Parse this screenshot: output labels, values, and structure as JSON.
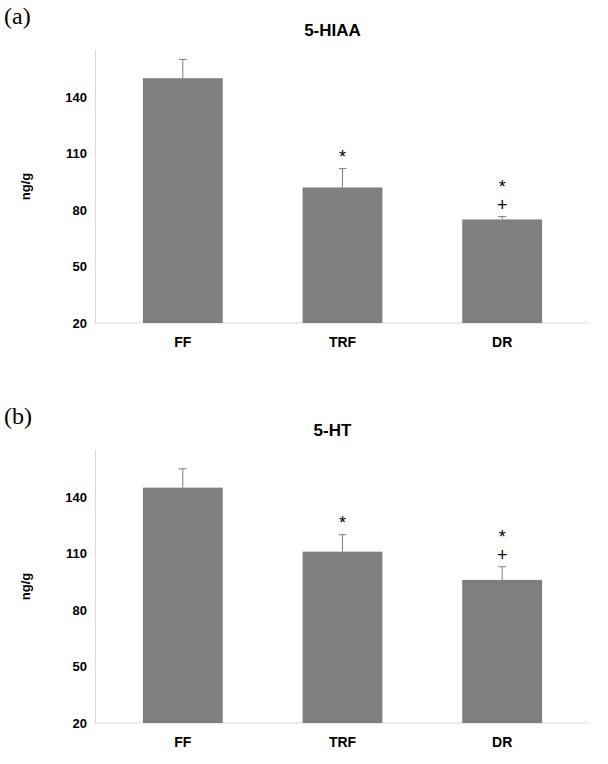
{
  "chart_data": [
    {
      "type": "bar",
      "panel": "(a)",
      "title": "5-HIAA",
      "y_label": "ng/g",
      "categories": [
        "FF",
        "TRF",
        "DR"
      ],
      "values": [
        150,
        92,
        75
      ],
      "errors": [
        10,
        10,
        1.5
      ],
      "color": "#7f7f7f",
      "ylim": [
        20,
        165
      ],
      "yticks": [
        20,
        50,
        80,
        110,
        140
      ],
      "annotations": [
        {
          "x": "TRF",
          "text": "*"
        },
        {
          "x": "DR",
          "text": "*"
        },
        {
          "x": "DR",
          "text": "+"
        }
      ]
    },
    {
      "type": "bar",
      "panel": "(b)",
      "title": "5-HT",
      "y_label": "ng/g",
      "categories": [
        "FF",
        "TRF",
        "DR"
      ],
      "values": [
        145,
        111,
        96
      ],
      "errors": [
        10,
        9,
        7
      ],
      "color": "#7f7f7f",
      "ylim": [
        20,
        165
      ],
      "yticks": [
        20,
        50,
        80,
        110,
        140
      ],
      "annotations": [
        {
          "x": "TRF",
          "text": "*"
        },
        {
          "x": "DR",
          "text": "*"
        },
        {
          "x": "DR",
          "text": "+"
        }
      ]
    }
  ]
}
